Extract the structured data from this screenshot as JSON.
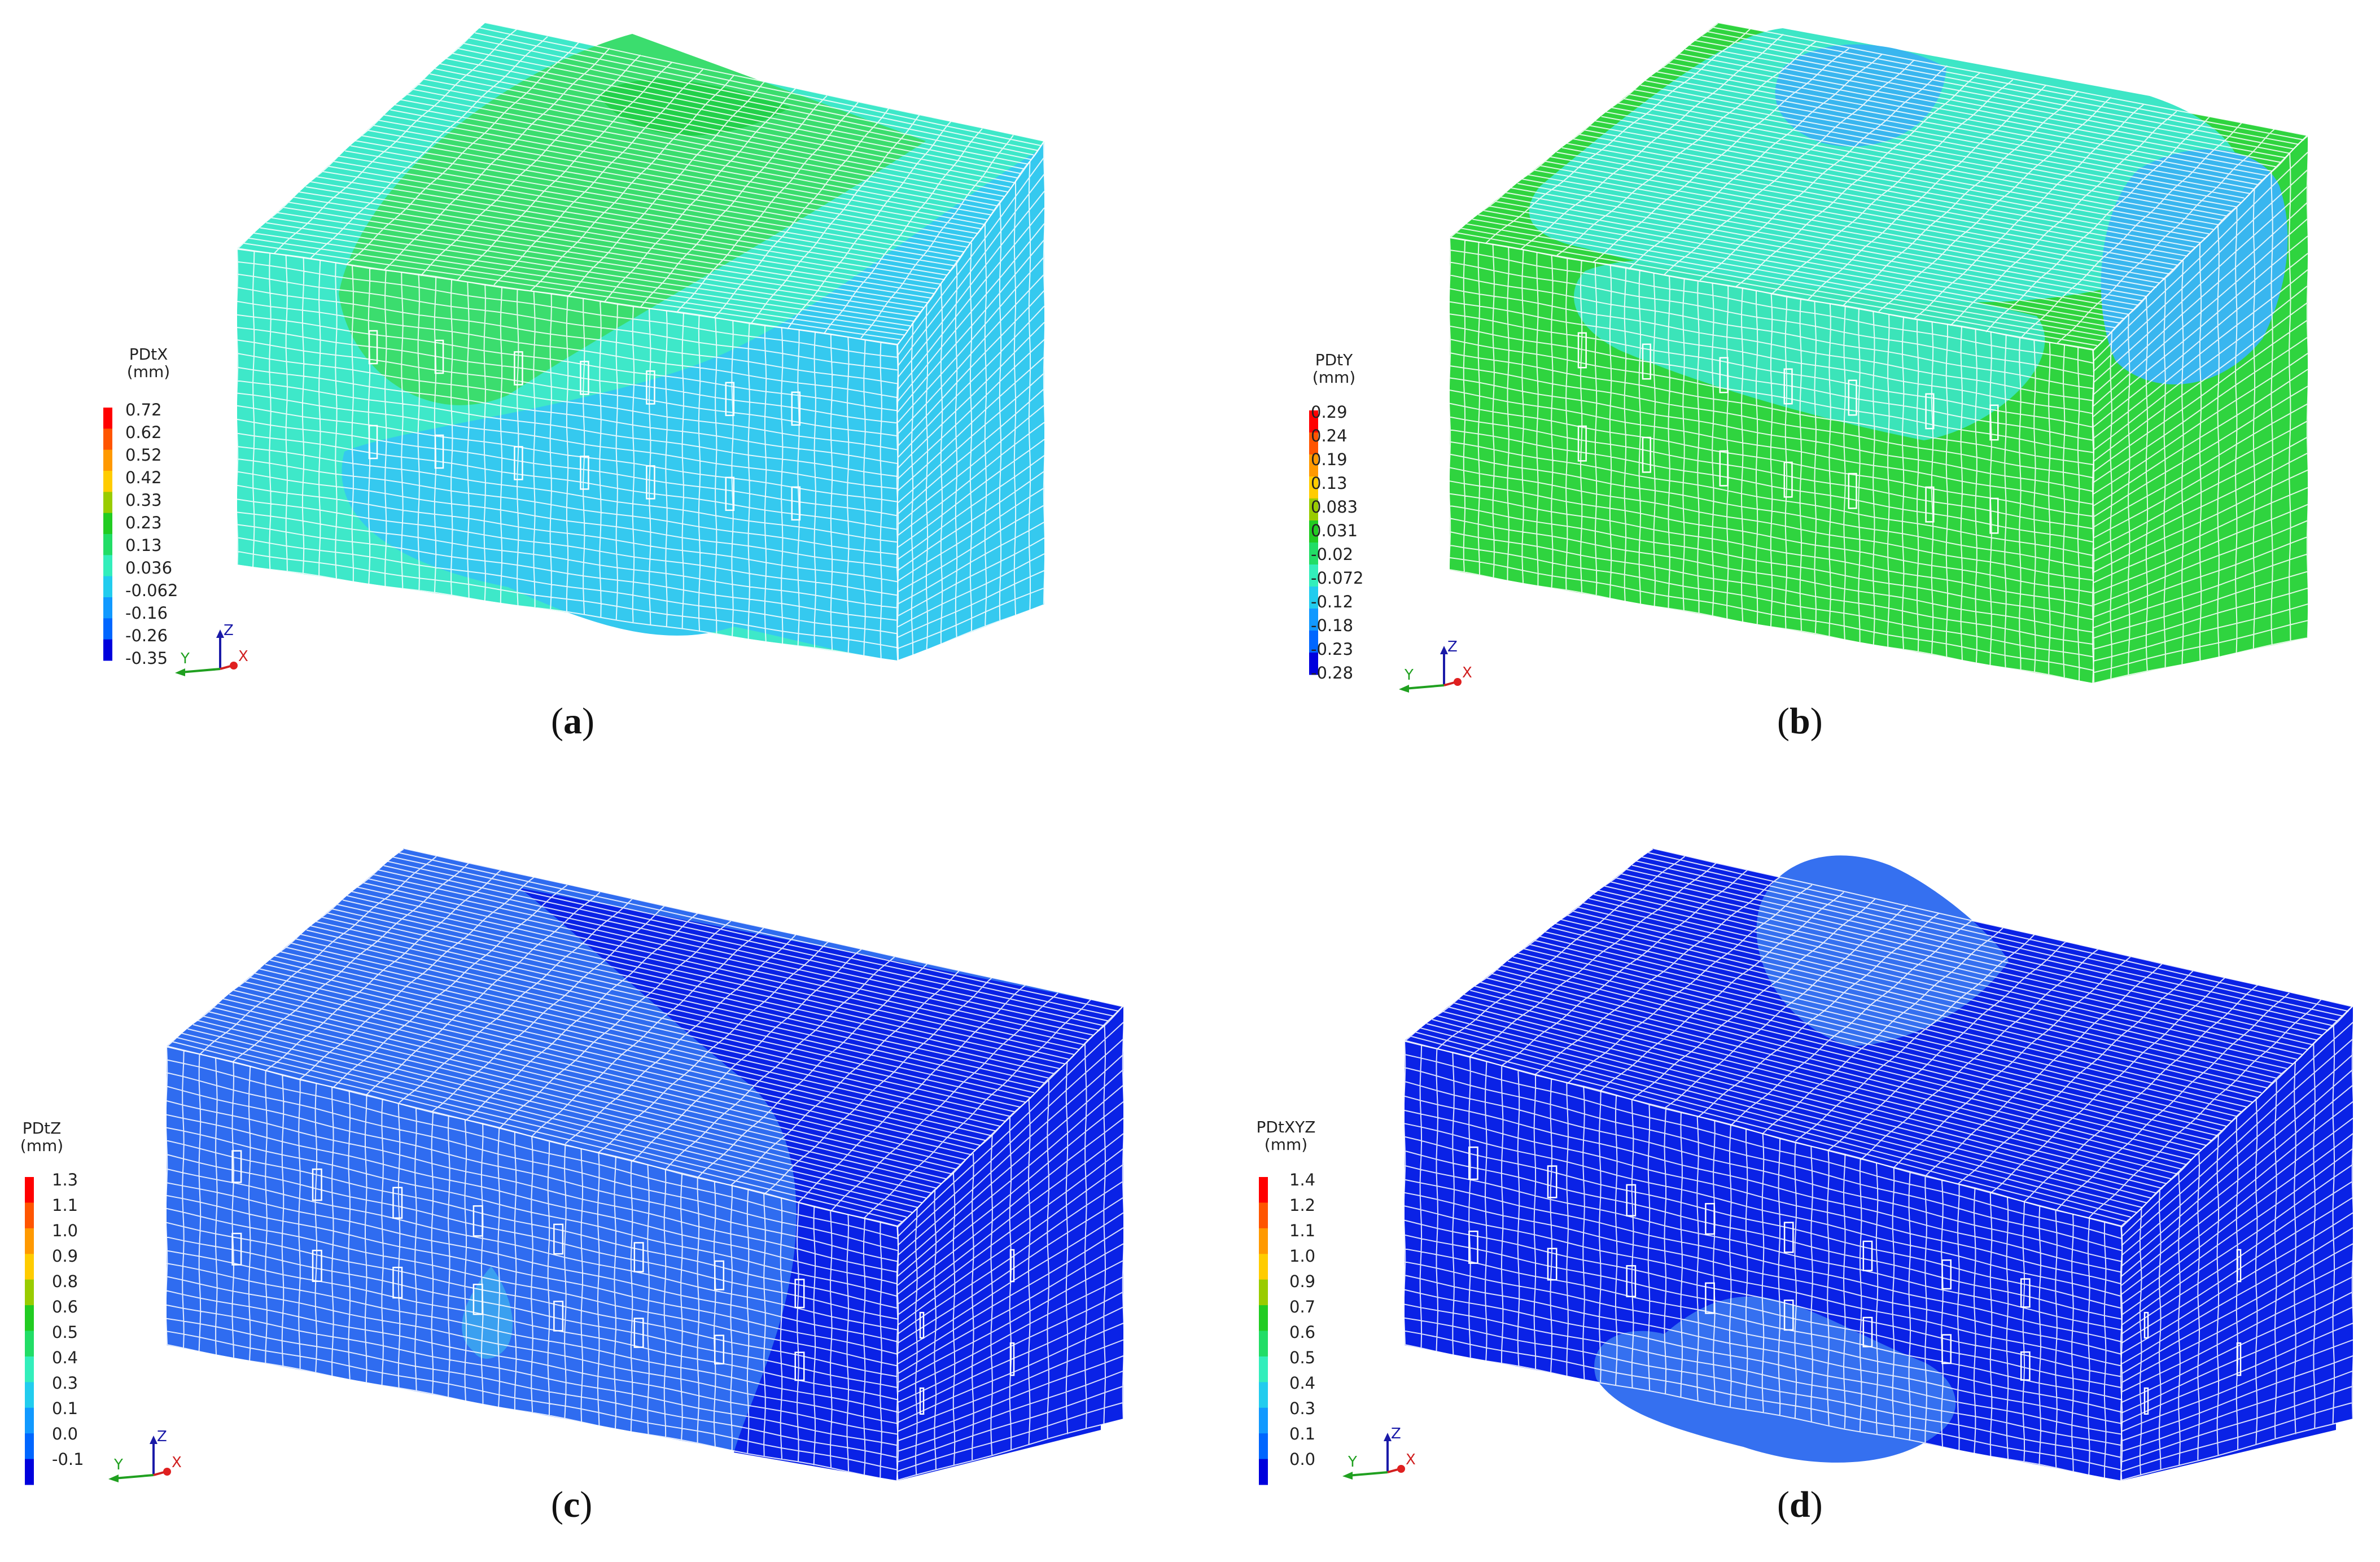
{
  "panels": [
    {
      "id": "a",
      "caption_open": "(",
      "caption_letter": "a",
      "caption_close": ")",
      "legend": {
        "title": "PDtX",
        "unit": "(mm)",
        "ticks": [
          "0.72",
          "0.62",
          "0.52",
          "0.42",
          "0.33",
          "0.23",
          "0.13",
          "0.036",
          "-0.062",
          "-0.16",
          "-0.26",
          "-0.35"
        ],
        "colors": [
          "#ff0000",
          "#ff5500",
          "#ff9900",
          "#ffcc00",
          "#99cc00",
          "#22cc22",
          "#22dd66",
          "#33eebb",
          "#22ccee",
          "#1199ff",
          "#0066ff",
          "#0000dd"
        ]
      },
      "triad": {
        "z": "Z",
        "y": "Y",
        "x": "X"
      }
    },
    {
      "id": "b",
      "caption_open": "(",
      "caption_letter": "b",
      "caption_close": ")",
      "legend": {
        "title": "PDtY",
        "unit": "(mm)",
        "ticks": [
          "0.29",
          "0.24",
          "0.19",
          "0.13",
          "0.083",
          "0.031",
          "-0.02",
          "-0.072",
          "-0.12",
          "-0.18",
          "-0.23",
          "-0.28"
        ],
        "colors": [
          "#ff0000",
          "#ff5500",
          "#ff9900",
          "#ffcc00",
          "#99cc00",
          "#22cc22",
          "#22dd66",
          "#33eebb",
          "#22ccee",
          "#1199ff",
          "#0066ff",
          "#0000dd"
        ]
      },
      "triad": {
        "z": "Z",
        "y": "Y",
        "x": "X"
      }
    },
    {
      "id": "c",
      "caption_open": "(",
      "caption_letter": "c",
      "caption_close": ")",
      "legend": {
        "title": "PDtZ",
        "unit": "(mm)",
        "ticks": [
          "1.3",
          "1.1",
          "1.0",
          "0.9",
          "0.8",
          "0.6",
          "0.5",
          "0.4",
          "0.3",
          "0.1",
          "0.0",
          "-0.1"
        ],
        "colors": [
          "#ff0000",
          "#ff5500",
          "#ff9900",
          "#ffcc00",
          "#99cc00",
          "#22cc22",
          "#22dd66",
          "#33eebb",
          "#22ccee",
          "#1199ff",
          "#0066ff",
          "#0000dd"
        ]
      },
      "triad": {
        "z": "Z",
        "y": "Y",
        "x": "X"
      }
    },
    {
      "id": "d",
      "caption_open": "(",
      "caption_letter": "d",
      "caption_close": ")",
      "legend": {
        "title": "PDtXYZ",
        "unit": "(mm)",
        "ticks": [
          "1.4",
          "1.2",
          "1.1",
          "1.0",
          "0.9",
          "0.7",
          "0.6",
          "0.5",
          "0.4",
          "0.3",
          "0.1",
          "0.0"
        ],
        "colors": [
          "#ff0000",
          "#ff5500",
          "#ff9900",
          "#ffcc00",
          "#99cc00",
          "#22cc22",
          "#22dd66",
          "#33eebb",
          "#22ccee",
          "#1199ff",
          "#0066ff",
          "#0000dd"
        ]
      },
      "triad": {
        "z": "Z",
        "y": "Y",
        "x": "X"
      }
    }
  ],
  "palette": {
    "a_base": "#3ee8c9",
    "a_green": "#3bdd6e",
    "a_green_dark": "#22d04a",
    "a_cyan": "#35c9ef",
    "b_base": "#2fd43f",
    "b_cyan": "#3de6c6",
    "b_blue": "#39b6ef",
    "c_light": "#2f6cf0",
    "c_dark": "#0a22e6",
    "c_patch": "#3aa0f0",
    "d_dark": "#0a22e6",
    "d_patch": "#3570f0",
    "mesh": "#ffffff"
  }
}
